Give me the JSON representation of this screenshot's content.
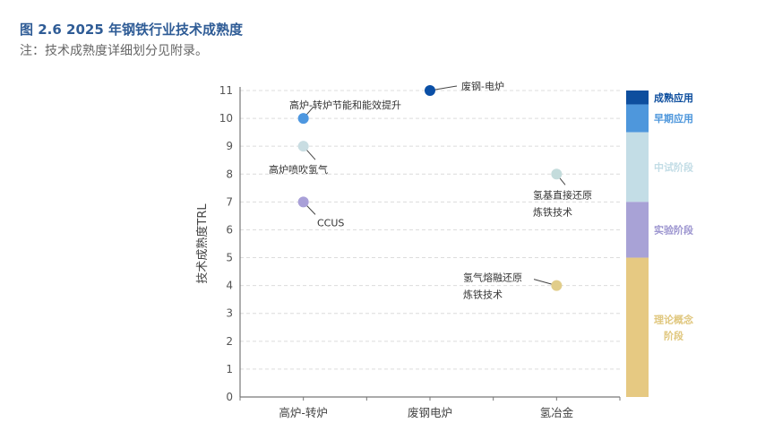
{
  "figure": {
    "title": "图 2.6  2025 年钢铁行业技术成熟度",
    "note": "注：技术成熟度详细划分见附录。"
  },
  "chart_data": {
    "type": "scatter",
    "title": "2025 年钢铁行业技术成熟度",
    "xlabel": "",
    "ylabel": "技术成熟度TRL",
    "categories": [
      "高炉-转炉",
      "废钢电炉",
      "氢冶金"
    ],
    "ylim": [
      0,
      11
    ],
    "yticks": [
      "0",
      "1",
      "2",
      "3",
      "4",
      "5",
      "6",
      "7",
      "8",
      "9",
      "10",
      "11"
    ],
    "grid": "horizontal dashed",
    "points": [
      {
        "category": "废钢电炉",
        "label": "废钢-电炉",
        "trl": 11,
        "color": "#0a4fa6"
      },
      {
        "category": "高炉-转炉",
        "label": "高炉-转炉节能和能效提升",
        "trl": 10,
        "color": "#4d97e0"
      },
      {
        "category": "高炉-转炉",
        "label": "高炉喷吹氢气",
        "trl": 9,
        "color": "#c9dde2"
      },
      {
        "category": "高炉-转炉",
        "label": "CCUS",
        "trl": 7,
        "color": "#a9a0d8"
      },
      {
        "category": "氢冶金",
        "label": "氢基直接还原炼铁技术",
        "label_lines": [
          "氢基直接还原",
          "炼铁技术"
        ],
        "trl": 8,
        "color": "#c4dcdc"
      },
      {
        "category": "氢冶金",
        "label": "氢气熔融还原炼铁技术",
        "label_lines": [
          "氢气熔融还原",
          "炼铁技术"
        ],
        "trl": 4,
        "color": "#e1cd8a"
      }
    ],
    "stages": [
      {
        "name": "成熟应用",
        "from": 10.5,
        "to": 11.5,
        "color": "#0d4e9e",
        "text_color": "#0d4e9e"
      },
      {
        "name": "早期应用",
        "from": 9.5,
        "to": 10.5,
        "color": "#4e97dc",
        "text_color": "#4e97dc"
      },
      {
        "name": "中试阶段",
        "from": 7.0,
        "to": 9.5,
        "color": "#c3dde6",
        "text_color": "#c3dde6"
      },
      {
        "name": "实验阶段",
        "from": 5.0,
        "to": 7.0,
        "color": "#a8a2d6",
        "text_color": "#9d96d0"
      },
      {
        "name": "理论概念阶段",
        "name_lines": [
          "理论概念",
          "阶段"
        ],
        "from": 0,
        "to": 5.0,
        "color": "#e6c982",
        "text_color": "#e0c77e"
      }
    ]
  }
}
